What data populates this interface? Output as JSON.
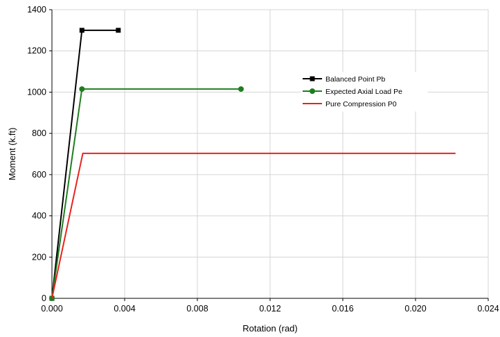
{
  "chart_data": {
    "type": "line",
    "title": "",
    "xlabel": "Rotation (rad)",
    "ylabel": "Moment (k.ft)",
    "xlim": [
      0,
      0.024
    ],
    "ylim": [
      0,
      1400
    ],
    "x_ticks": [
      "0.000",
      "0.004",
      "0.008",
      "0.012",
      "0.016",
      "0.020",
      "0.024"
    ],
    "y_ticks": [
      "0",
      "200",
      "400",
      "600",
      "800",
      "1000",
      "1200",
      "1400"
    ],
    "grid": true,
    "legend_position": "upper-right",
    "series": [
      {
        "name": "Balanced Point Pb",
        "color": "#000000",
        "marker": "square",
        "x": [
          0.0,
          0.00165,
          0.00365
        ],
        "y": [
          0,
          1300,
          1300
        ]
      },
      {
        "name": "Expected Axial Load Pe",
        "color": "#1e7d1e",
        "marker": "circle",
        "x": [
          0.0,
          0.00165,
          0.0104
        ],
        "y": [
          0,
          1015,
          1015
        ]
      },
      {
        "name": "Pure Compression P0",
        "color": "#e8221b",
        "marker": "none",
        "x": [
          0.0,
          0.0017,
          0.0222
        ],
        "y": [
          0,
          703,
          703
        ]
      }
    ]
  }
}
